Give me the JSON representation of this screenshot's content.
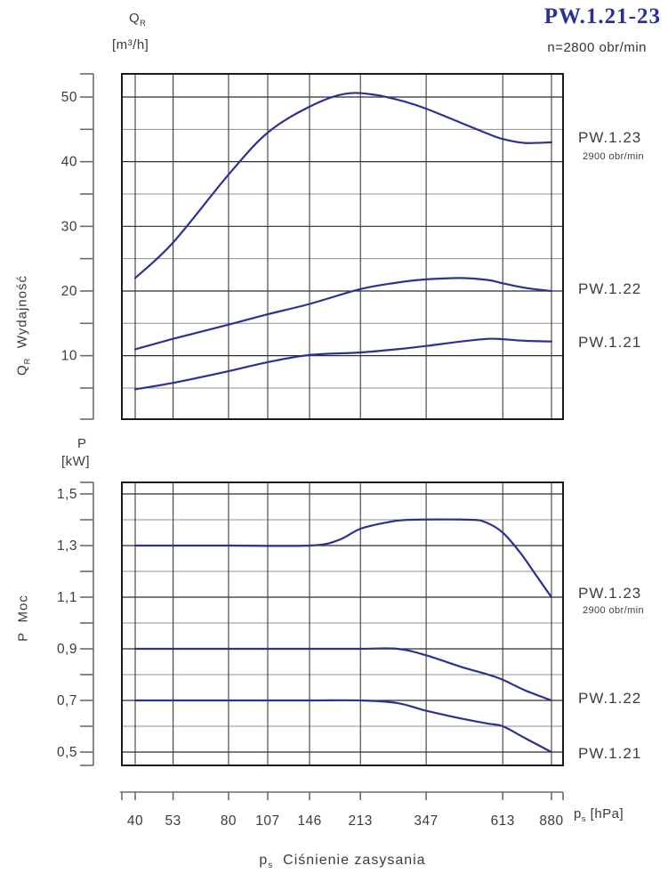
{
  "title": "PW.1.21-23",
  "subtitle": "n=2800 obr/min",
  "colors": {
    "curve": "#2d3190",
    "title_blue": "#2b2f9a",
    "frame": "#1a1a1a",
    "grid_major": "#2b2b2b",
    "grid_minor": "#8f8f8f",
    "grid_vertical": "#3c3c3c",
    "ruler": "#6a6a6a",
    "text": "#3b3b3b"
  },
  "top_header": {
    "sym": "Q",
    "sub": "R",
    "unit": "[m³/h]"
  },
  "bottom_header": {
    "sym": "P",
    "unit": "[kW]"
  },
  "left_label_top": {
    "sym": "Q",
    "sub": "R",
    "text": "Wydajność"
  },
  "left_label_bottom": {
    "sym": "P",
    "text": "Moc"
  },
  "x_unit": {
    "sym": "p",
    "sub": "s",
    "unit": "[hPa]"
  },
  "axis_caption": {
    "sym": "p",
    "sub": "s",
    "text": "Ciśnienie  zasysania"
  },
  "chart_data": [
    {
      "type": "line",
      "title": "Wydajność (capacity) vs. suction pressure",
      "xlabel": "p_s [hPa]",
      "ylabel": "Q_R [m³/h]",
      "x_scale": "log",
      "grid": true,
      "legend_position": "right",
      "x_ticks": [
        40,
        53,
        80,
        107,
        146,
        213,
        347,
        613,
        880
      ],
      "x_tick_labels": [
        "40",
        "53",
        "80",
        "107",
        "146",
        "213",
        "347",
        "613",
        "880"
      ],
      "y_ticks": [
        10,
        20,
        30,
        40,
        50
      ],
      "y_tick_labels": [
        "10",
        "20",
        "30",
        "40",
        "50"
      ],
      "y_minor": [
        5,
        15,
        25,
        35,
        45
      ],
      "ylim": [
        0,
        53.5
      ],
      "series": [
        {
          "name": "PW.1.23",
          "note": "2900 obr/min",
          "points": [
            [
              40,
              22
            ],
            [
              53,
              27.5
            ],
            [
              80,
              38
            ],
            [
              107,
              44.5
            ],
            [
              146,
              48.5
            ],
            [
              190,
              50.5
            ],
            [
              240,
              50.3
            ],
            [
              300,
              49.2
            ],
            [
              347,
              48.2
            ],
            [
              450,
              46
            ],
            [
              550,
              44.3
            ],
            [
              613,
              43.5
            ],
            [
              720,
              42.9
            ],
            [
              880,
              43
            ]
          ]
        },
        {
          "name": "PW.1.22",
          "points": [
            [
              40,
              11
            ],
            [
              53,
              12.6
            ],
            [
              80,
              14.8
            ],
            [
              107,
              16.4
            ],
            [
              146,
              18
            ],
            [
              213,
              20.3
            ],
            [
              280,
              21.3
            ],
            [
              347,
              21.8
            ],
            [
              450,
              22
            ],
            [
              550,
              21.7
            ],
            [
              613,
              21.2
            ],
            [
              720,
              20.5
            ],
            [
              880,
              20
            ]
          ]
        },
        {
          "name": "PW.1.21",
          "points": [
            [
              40,
              4.8
            ],
            [
              53,
              5.8
            ],
            [
              80,
              7.6
            ],
            [
              107,
              9
            ],
            [
              146,
              10.1
            ],
            [
              213,
              10.5
            ],
            [
              280,
              11
            ],
            [
              347,
              11.5
            ],
            [
              450,
              12.2
            ],
            [
              550,
              12.6
            ],
            [
              613,
              12.55
            ],
            [
              720,
              12.3
            ],
            [
              880,
              12.2
            ]
          ]
        }
      ]
    },
    {
      "type": "line",
      "title": "Moc (power) vs. suction pressure",
      "xlabel": "p_s [hPa]",
      "ylabel": "P [kW]",
      "x_scale": "log",
      "grid": true,
      "legend_position": "right",
      "x_ticks": [
        40,
        53,
        80,
        107,
        146,
        213,
        347,
        613,
        880
      ],
      "x_tick_labels": [
        "40",
        "53",
        "80",
        "107",
        "146",
        "213",
        "347",
        "613",
        "880"
      ],
      "y_ticks": [
        0.5,
        0.7,
        0.9,
        1.1,
        1.3,
        1.5
      ],
      "y_tick_labels": [
        "0,5",
        "0,7",
        "0,9",
        "1,1",
        "1,3",
        "1,5"
      ],
      "y_minor": [
        0.6,
        0.8,
        1.0,
        1.2,
        1.4
      ],
      "ylim": [
        0.45,
        1.55
      ],
      "series": [
        {
          "name": "PW.1.23",
          "note": "2900 obr/min",
          "points": [
            [
              40,
              1.3
            ],
            [
              80,
              1.3
            ],
            [
              146,
              1.3
            ],
            [
              180,
              1.32
            ],
            [
              213,
              1.365
            ],
            [
              260,
              1.39
            ],
            [
              310,
              1.4
            ],
            [
              480,
              1.4
            ],
            [
              540,
              1.39
            ],
            [
              613,
              1.35
            ],
            [
              700,
              1.27
            ],
            [
              790,
              1.18
            ],
            [
              880,
              1.1
            ]
          ]
        },
        {
          "name": "PW.1.22",
          "points": [
            [
              40,
              0.9
            ],
            [
              80,
              0.9
            ],
            [
              146,
              0.9
            ],
            [
              213,
              0.9
            ],
            [
              280,
              0.9
            ],
            [
              347,
              0.875
            ],
            [
              450,
              0.83
            ],
            [
              550,
              0.8
            ],
            [
              613,
              0.78
            ],
            [
              720,
              0.74
            ],
            [
              880,
              0.7
            ]
          ]
        },
        {
          "name": "PW.1.21",
          "points": [
            [
              40,
              0.7
            ],
            [
              80,
              0.7
            ],
            [
              146,
              0.7
            ],
            [
              213,
              0.7
            ],
            [
              280,
              0.69
            ],
            [
              347,
              0.66
            ],
            [
              450,
              0.63
            ],
            [
              550,
              0.61
            ],
            [
              613,
              0.6
            ],
            [
              720,
              0.555
            ],
            [
              880,
              0.5
            ]
          ]
        }
      ]
    }
  ]
}
